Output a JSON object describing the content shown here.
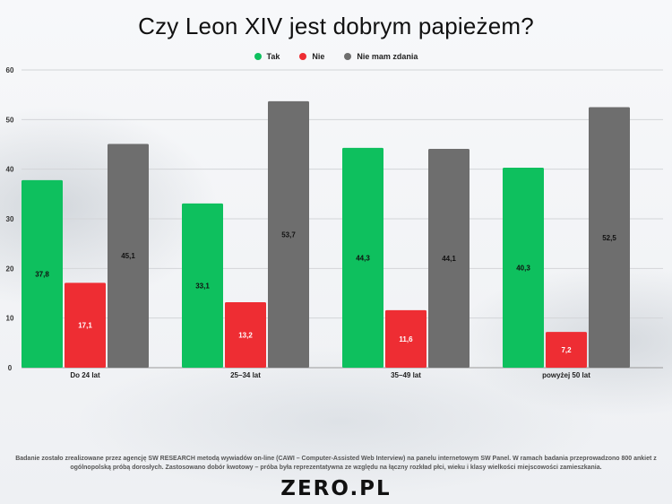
{
  "title": "Czy Leon XIV jest dobrym papieżem?",
  "legend": [
    {
      "label": "Tak",
      "color": "#0ec05e"
    },
    {
      "label": "Nie",
      "color": "#ee2d33"
    },
    {
      "label": "Nie mam zdania",
      "color": "#6e6e6e"
    }
  ],
  "chart_data": {
    "type": "bar",
    "categories": [
      "Do 24 lat",
      "25–34 lat",
      "35–49 lat",
      "powyżej 50 lat"
    ],
    "series": [
      {
        "name": "Tak",
        "values": [
          37.8,
          33.1,
          44.3,
          40.3
        ],
        "labels": [
          "37,8",
          "33,1",
          "44,3",
          "40,3"
        ],
        "color": "#0ec05e"
      },
      {
        "name": "Nie",
        "values": [
          17.1,
          13.2,
          11.6,
          7.2
        ],
        "labels": [
          "17,1",
          "13,2",
          "11,6",
          "7,2"
        ],
        "color": "#ee2d33"
      },
      {
        "name": "Nie mam zdania",
        "values": [
          45.1,
          53.7,
          44.1,
          52.5
        ],
        "labels": [
          "45,1",
          "53,7",
          "44,1",
          "52,5"
        ],
        "color": "#6e6e6e"
      }
    ],
    "ylim": [
      0,
      60
    ],
    "yticks": [
      "0",
      "10",
      "20",
      "30",
      "40",
      "50",
      "60"
    ],
    "grid": true,
    "legend_position": "top-center"
  },
  "note": "Badanie zostało zrealizowane przez agencję SW RESEARCH metodą wywiadów on-line (CAWI – Computer-Assisted Web Interview) na panelu internetowym SW Panel. W ramach badania przeprowadzono 800 ankiet z ogólnopolską próbą dorosłych. Zastosowano dobór kwotowy – próba była reprezentatywna ze względu na łączny rozkład płci, wieku i klasy wielkości miejscowości zamieszkania.",
  "logo": "ZERO.PL"
}
